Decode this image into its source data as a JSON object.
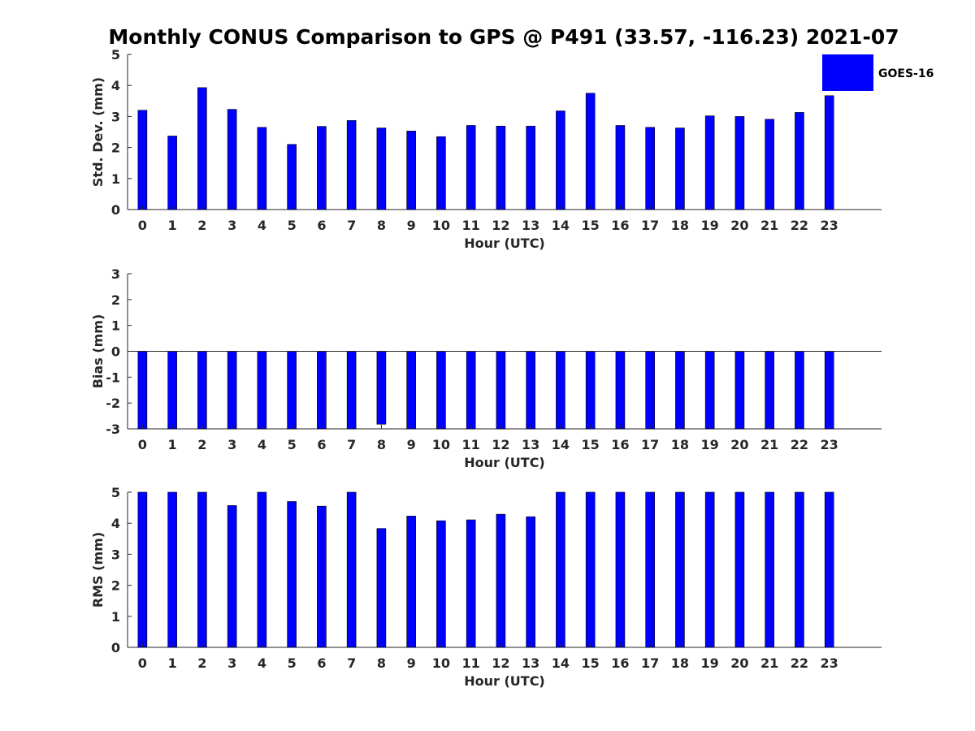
{
  "title": "Monthly CONUS Comparison to GPS @ P491 (33.57, -116.23) 2021-07",
  "legend": {
    "label": "GOES-16",
    "color": "#0000ff"
  },
  "chart_data": [
    {
      "type": "bar",
      "xlabel": "Hour (UTC)",
      "ylabel": "Std. Dev. (mm)",
      "ylim": [
        0,
        5
      ],
      "yticks": [
        "0",
        "1",
        "2",
        "3",
        "4",
        "5"
      ],
      "categories": [
        "0",
        "1",
        "2",
        "3",
        "4",
        "5",
        "6",
        "7",
        "8",
        "9",
        "10",
        "11",
        "12",
        "13",
        "14",
        "15",
        "16",
        "17",
        "18",
        "19",
        "20",
        "21",
        "22",
        "23"
      ],
      "series": [
        {
          "name": "GOES-16",
          "values": [
            3.2,
            2.37,
            3.93,
            3.23,
            2.65,
            2.1,
            2.68,
            2.87,
            2.63,
            2.53,
            2.35,
            2.71,
            2.69,
            2.69,
            3.18,
            3.75,
            2.71,
            2.65,
            2.63,
            3.02,
            3.0,
            2.91,
            3.13,
            3.67
          ]
        }
      ],
      "grid": false
    },
    {
      "type": "bar",
      "xlabel": "Hour (UTC)",
      "ylabel": "Bias (mm)",
      "ylim": [
        -3,
        3
      ],
      "yticks": [
        "-3",
        "-2",
        "-1",
        "0",
        "1",
        "2",
        "3"
      ],
      "categories": [
        "0",
        "1",
        "2",
        "3",
        "4",
        "5",
        "6",
        "7",
        "8",
        "9",
        "10",
        "11",
        "12",
        "13",
        "14",
        "15",
        "16",
        "17",
        "18",
        "19",
        "20",
        "21",
        "22",
        "23"
      ],
      "series": [
        {
          "name": "GOES-16",
          "values": [
            -3.0,
            -3.0,
            -3.0,
            -3.0,
            -3.0,
            -3.0,
            -3.0,
            -3.0,
            -2.82,
            -3.0,
            -3.0,
            -3.0,
            -3.0,
            -3.0,
            -3.0,
            -3.0,
            -3.0,
            -3.0,
            -3.0,
            -3.0,
            -3.0,
            -3.0,
            -3.0,
            -3.0
          ]
        }
      ],
      "grid": false
    },
    {
      "type": "bar",
      "xlabel": "Hour (UTC)",
      "ylabel": "RMS (mm)",
      "ylim": [
        0,
        5
      ],
      "yticks": [
        "0",
        "1",
        "2",
        "3",
        "4",
        "5"
      ],
      "categories": [
        "0",
        "1",
        "2",
        "3",
        "4",
        "5",
        "6",
        "7",
        "8",
        "9",
        "10",
        "11",
        "12",
        "13",
        "14",
        "15",
        "16",
        "17",
        "18",
        "19",
        "20",
        "21",
        "22",
        "23"
      ],
      "series": [
        {
          "name": "GOES-16",
          "values": [
            5.0,
            5.0,
            5.0,
            4.57,
            5.0,
            4.7,
            4.55,
            5.0,
            3.83,
            4.23,
            4.08,
            4.11,
            4.29,
            4.21,
            5.0,
            5.0,
            5.0,
            5.0,
            5.0,
            5.0,
            5.0,
            5.0,
            5.0,
            5.0
          ]
        }
      ],
      "grid": false
    }
  ]
}
